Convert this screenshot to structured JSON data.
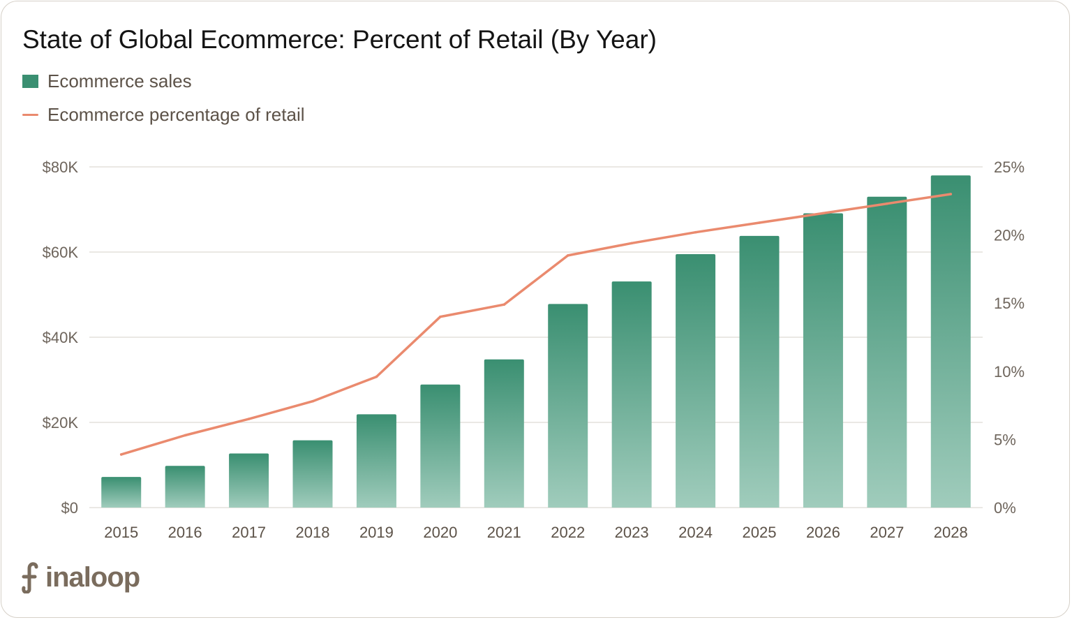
{
  "colors": {
    "bar_top": "#3a8f71",
    "bar_bottom": "#a0ccbc",
    "line": "#ea8a6e",
    "grid": "#e4e1dc",
    "axis_text": "#6e655c"
  },
  "logo": {
    "text": "inaloop",
    "icon": "finaloop-f-icon"
  },
  "chart_data": {
    "type": "bar",
    "title": "State of Global Ecommerce: Percent of Retail (By Year)",
    "legend": {
      "placement": "top-left",
      "bars_label": "Ecommerce sales",
      "line_label": "Ecommerce percentage of retail"
    },
    "categories": [
      "2015",
      "2016",
      "2017",
      "2018",
      "2019",
      "2020",
      "2021",
      "2022",
      "2023",
      "2024",
      "2025",
      "2026",
      "2027",
      "2028"
    ],
    "series": [
      {
        "name": "Ecommerce sales",
        "type": "bar",
        "axis": "left",
        "values": [
          7200,
          9800,
          12700,
          15800,
          21900,
          28900,
          34800,
          47800,
          53100,
          59500,
          63800,
          69100,
          73000,
          78000
        ]
      },
      {
        "name": "Ecommerce percentage of retail",
        "type": "line",
        "axis": "right",
        "values": [
          3.9,
          5.3,
          6.5,
          7.8,
          9.6,
          14.0,
          14.9,
          18.5,
          19.4,
          20.2,
          20.9,
          21.6,
          22.3,
          23.0
        ]
      }
    ],
    "y_left": {
      "ylim": [
        0,
        80000
      ],
      "ticks": [
        {
          "value": 0,
          "label": "$0"
        },
        {
          "value": 20000,
          "label": "$20K"
        },
        {
          "value": 40000,
          "label": "$40K"
        },
        {
          "value": 60000,
          "label": "$60K"
        },
        {
          "value": 80000,
          "label": "$80K"
        }
      ]
    },
    "y_right": {
      "ylim": [
        0,
        25
      ],
      "ticks": [
        {
          "value": 0,
          "label": "0%"
        },
        {
          "value": 5,
          "label": "5%"
        },
        {
          "value": 10,
          "label": "10%"
        },
        {
          "value": 15,
          "label": "15%"
        },
        {
          "value": 20,
          "label": "20%"
        },
        {
          "value": 25,
          "label": "25%"
        }
      ]
    },
    "grid": true
  }
}
